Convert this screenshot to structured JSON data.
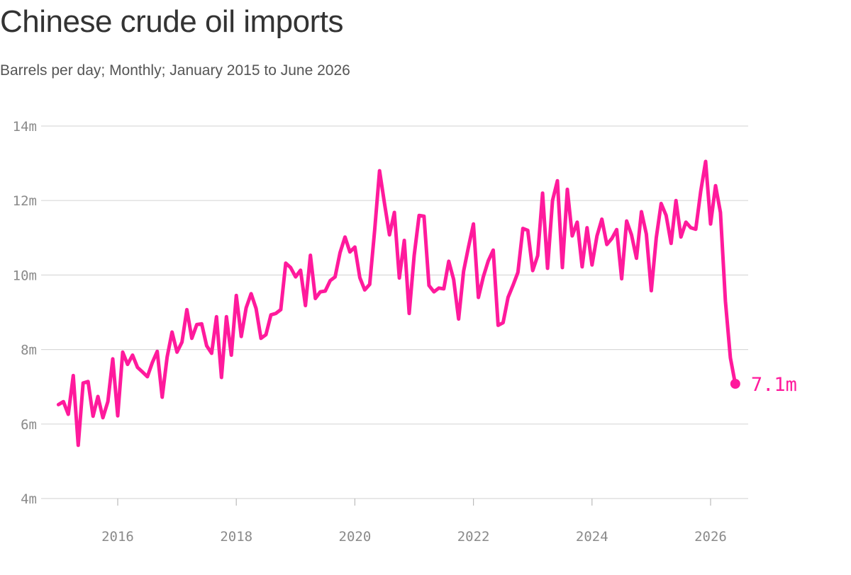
{
  "title": "Chinese crude oil imports",
  "subtitle": "Barrels per day; Monthly; January 2015 to June 2026",
  "colors": {
    "line": "#ff1a9c",
    "grid": "#d9d9d9",
    "axis_text": "#8a8a8a"
  },
  "chart_data": {
    "type": "line",
    "title": "Chinese crude oil imports",
    "subtitle": "Barrels per day; Monthly; January 2015 to June 2026",
    "xlabel": "",
    "ylabel": "",
    "x_range": [
      "2015-01",
      "2026-06"
    ],
    "ylim": [
      4,
      14
    ],
    "y_ticks": [
      4,
      6,
      8,
      10,
      12,
      14
    ],
    "y_tick_labels": [
      "4m",
      "6m",
      "8m",
      "10m",
      "12m",
      "14m"
    ],
    "x_ticks": [
      "2016-01",
      "2018-01",
      "2020-01",
      "2022-01",
      "2024-01",
      "2026-01"
    ],
    "x_tick_labels": [
      "2016",
      "2018",
      "2020",
      "2022",
      "2024",
      "2026"
    ],
    "grid": "horizontal",
    "end_label": "7.1m",
    "series": [
      {
        "x": [
          "2015-01",
          "2015-02",
          "2015-03",
          "2015-04",
          "2015-05",
          "2015-06",
          "2015-07",
          "2015-08",
          "2015-09",
          "2015-10",
          "2015-11",
          "2015-12",
          "2016-01",
          "2016-02",
          "2016-03",
          "2016-04",
          "2016-05",
          "2016-06",
          "2016-07",
          "2016-08",
          "2016-09",
          "2016-10",
          "2016-11",
          "2016-12",
          "2017-01",
          "2017-02",
          "2017-03",
          "2017-04",
          "2017-05",
          "2017-06",
          "2017-07",
          "2017-08",
          "2017-09",
          "2017-10",
          "2017-11",
          "2017-12",
          "2018-01",
          "2018-02",
          "2018-03",
          "2018-04",
          "2018-05",
          "2018-06",
          "2018-07",
          "2018-08",
          "2018-09",
          "2018-10",
          "2018-11",
          "2018-12",
          "2019-01",
          "2019-02",
          "2019-03",
          "2019-04",
          "2019-05",
          "2019-06",
          "2019-07",
          "2019-08",
          "2019-09",
          "2019-10",
          "2019-11",
          "2019-12",
          "2020-01",
          "2020-02",
          "2020-03",
          "2020-04",
          "2020-05",
          "2020-06",
          "2020-07",
          "2020-08",
          "2020-09",
          "2020-10",
          "2020-11",
          "2020-12",
          "2021-01",
          "2021-02",
          "2021-03",
          "2021-04",
          "2021-05",
          "2021-06",
          "2021-07",
          "2021-08",
          "2021-09",
          "2021-10",
          "2021-11",
          "2021-12",
          "2022-01",
          "2022-02",
          "2022-03",
          "2022-04",
          "2022-05",
          "2022-06",
          "2022-07",
          "2022-08",
          "2022-09",
          "2022-10",
          "2022-11",
          "2022-12",
          "2023-01",
          "2023-02",
          "2023-03",
          "2023-04",
          "2023-05",
          "2023-06",
          "2023-07",
          "2023-08",
          "2023-09",
          "2023-10",
          "2023-11",
          "2023-12",
          "2024-01",
          "2024-02",
          "2024-03",
          "2024-04",
          "2024-05",
          "2024-06",
          "2024-07",
          "2024-08",
          "2024-09",
          "2024-10",
          "2024-11",
          "2024-12",
          "2025-01",
          "2025-02",
          "2025-03",
          "2025-04",
          "2025-05",
          "2025-06",
          "2025-07",
          "2025-08",
          "2025-09",
          "2025-10",
          "2025-11",
          "2025-12",
          "2026-01",
          "2026-02",
          "2026-03",
          "2026-04",
          "2026-05",
          "2026-06"
        ],
        "values": [
          6.52,
          6.6,
          6.26,
          7.3,
          5.43,
          7.1,
          7.14,
          6.21,
          6.74,
          6.17,
          6.6,
          7.75,
          6.22,
          7.93,
          7.6,
          7.85,
          7.52,
          7.4,
          7.27,
          7.65,
          7.95,
          6.72,
          7.8,
          8.47,
          7.93,
          8.2,
          9.07,
          8.3,
          8.67,
          8.69,
          8.1,
          7.9,
          8.88,
          7.25,
          8.88,
          7.85,
          9.45,
          8.35,
          9.12,
          9.5,
          9.1,
          8.3,
          8.4,
          8.93,
          8.97,
          9.07,
          10.32,
          10.2,
          9.95,
          10.13,
          9.18,
          10.53,
          9.37,
          9.55,
          9.57,
          9.85,
          9.95,
          10.6,
          11.02,
          10.62,
          10.75,
          9.93,
          9.6,
          9.75,
          11.2,
          12.8,
          11.92,
          11.08,
          11.68,
          9.92,
          10.93,
          8.97,
          10.52,
          11.6,
          11.58,
          9.72,
          9.55,
          9.65,
          9.63,
          10.37,
          9.88,
          8.82,
          10.1,
          10.75,
          11.37,
          9.4,
          9.95,
          10.38,
          10.67,
          8.65,
          8.72,
          9.4,
          9.72,
          10.07,
          11.25,
          11.2,
          10.12,
          10.52,
          12.2,
          10.18,
          12.0,
          12.53,
          10.2,
          12.3,
          11.05,
          11.42,
          10.22,
          11.27,
          10.27,
          11.05,
          11.5,
          10.82,
          10.98,
          11.22,
          9.9,
          11.45,
          11.08,
          10.45,
          11.7,
          11.1,
          9.58,
          11.0,
          11.92,
          11.6,
          10.85,
          12.0,
          11.02,
          11.42,
          11.27,
          11.23,
          12.25,
          13.05,
          11.37,
          12.4,
          11.68,
          9.3,
          7.78,
          7.08
        ]
      }
    ]
  }
}
